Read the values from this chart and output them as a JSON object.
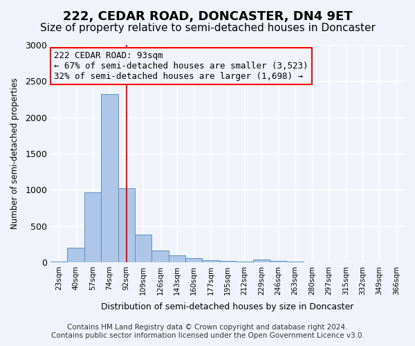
{
  "title": "222, CEDAR ROAD, DONCASTER, DN4 9ET",
  "subtitle": "Size of property relative to semi-detached houses in Doncaster",
  "xlabel": "Distribution of semi-detached houses by size in Doncaster",
  "ylabel": "Number of semi-detached properties",
  "property_size": 93,
  "property_label": "222 CEDAR ROAD: 93sqm",
  "pct_smaller": 67,
  "pct_larger": 32,
  "n_smaller": 3523,
  "n_larger": 1698,
  "categories": [
    "23sqm",
    "40sqm",
    "57sqm",
    "74sqm",
    "92sqm",
    "109sqm",
    "126sqm",
    "143sqm",
    "160sqm",
    "177sqm",
    "195sqm",
    "212sqm",
    "229sqm",
    "246sqm",
    "263sqm",
    "280sqm",
    "297sqm",
    "315sqm",
    "332sqm",
    "349sqm",
    "366sqm"
  ],
  "bar_heights": [
    10,
    200,
    960,
    2320,
    1020,
    380,
    160,
    90,
    55,
    30,
    20,
    10,
    40,
    15,
    5,
    2,
    1,
    1,
    1,
    1,
    0
  ],
  "bar_color": "#aec6e8",
  "bar_edge_color": "#5a8fc0",
  "vline_x_index": 4,
  "vline_color": "red",
  "annotation_box_color": "red",
  "ylim": [
    0,
    3000
  ],
  "yticks": [
    0,
    500,
    1000,
    1500,
    2000,
    2500,
    3000
  ],
  "footer_line1": "Contains HM Land Registry data © Crown copyright and database right 2024.",
  "footer_line2": "Contains public sector information licensed under the Open Government Licence v3.0.",
  "bg_color": "#f0f4fa",
  "grid_color": "#ffffff",
  "title_fontsize": 13,
  "subtitle_fontsize": 11,
  "annotation_fontsize": 9,
  "footer_fontsize": 7.5
}
